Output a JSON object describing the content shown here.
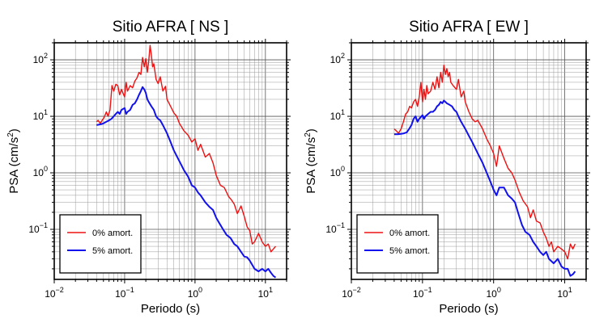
{
  "chart_data": [
    {
      "type": "line",
      "title": "Sitio AFRA [ NS ]",
      "xlabel": "Periodo (s)",
      "ylabel_main": "PSA (cm/s",
      "ylabel_sup": "2",
      "ylabel_close": ")",
      "xscale": "log",
      "yscale": "log",
      "xlim": [
        0.01,
        20
      ],
      "ylim": [
        0.013,
        200
      ],
      "grid": true,
      "legend_position": "bottom-left",
      "x_ticks": [
        {
          "value": 0.01,
          "base": "10",
          "exp": "−2"
        },
        {
          "value": 0.1,
          "base": "10",
          "exp": "−1"
        },
        {
          "value": 1,
          "base": "10",
          "exp": "0"
        },
        {
          "value": 10,
          "base": "10",
          "exp": "1"
        }
      ],
      "y_ticks": [
        {
          "value": 0.1,
          "base": "10",
          "exp": "−1"
        },
        {
          "value": 1,
          "base": "10",
          "exp": "0"
        },
        {
          "value": 10,
          "base": "10",
          "exp": "1"
        },
        {
          "value": 100,
          "base": "10",
          "exp": "2"
        }
      ],
      "series": [
        {
          "name": "0% amort.",
          "color": "#ee1111",
          "x": [
            0.04,
            0.042,
            0.045,
            0.048,
            0.051,
            0.055,
            0.058,
            0.062,
            0.066,
            0.07,
            0.075,
            0.08,
            0.085,
            0.09,
            0.1,
            0.105,
            0.11,
            0.12,
            0.13,
            0.14,
            0.15,
            0.16,
            0.17,
            0.18,
            0.19,
            0.2,
            0.21,
            0.22,
            0.23,
            0.24,
            0.25,
            0.26,
            0.28,
            0.3,
            0.32,
            0.35,
            0.38,
            0.4,
            0.45,
            0.5,
            0.55,
            0.6,
            0.7,
            0.8,
            0.9,
            1.0,
            1.1,
            1.2,
            1.4,
            1.6,
            1.8,
            2.0,
            2.3,
            2.6,
            3.0,
            3.3,
            3.6,
            4.0,
            4.5,
            5.0,
            5.5,
            6.0,
            6.5,
            7.0,
            8.0,
            9.0,
            10.0,
            11.0,
            12.0,
            13.0,
            14.0
          ],
          "y": [
            8,
            8.5,
            7.5,
            8.5,
            9.5,
            12,
            10,
            13,
            35,
            28,
            37,
            35,
            24,
            30,
            22,
            40,
            28,
            35,
            32,
            42,
            48,
            60,
            55,
            110,
            75,
            105,
            60,
            95,
            180,
            120,
            75,
            85,
            45,
            38,
            50,
            28,
            34,
            20,
            15,
            11.5,
            10,
            7.5,
            5.5,
            4.6,
            3.5,
            4.0,
            2.5,
            3.2,
            1.9,
            2.2,
            1.5,
            0.9,
            0.6,
            0.55,
            0.38,
            0.33,
            0.28,
            0.19,
            0.26,
            0.17,
            0.11,
            0.095,
            0.055,
            0.06,
            0.085,
            0.06,
            0.05,
            0.055,
            0.04,
            0.045,
            0.05
          ]
        },
        {
          "name": "5% amort.",
          "color": "#1111ee",
          "x": [
            0.04,
            0.045,
            0.05,
            0.055,
            0.06,
            0.065,
            0.07,
            0.075,
            0.08,
            0.085,
            0.09,
            0.1,
            0.105,
            0.11,
            0.12,
            0.13,
            0.14,
            0.15,
            0.16,
            0.17,
            0.18,
            0.19,
            0.2,
            0.21,
            0.22,
            0.24,
            0.26,
            0.28,
            0.3,
            0.32,
            0.35,
            0.4,
            0.45,
            0.5,
            0.6,
            0.7,
            0.8,
            0.9,
            1.0,
            1.1,
            1.2,
            1.4,
            1.6,
            1.8,
            2.0,
            2.2,
            2.5,
            2.8,
            3.2,
            3.6,
            4.0,
            4.5,
            5.0,
            5.5,
            6.0,
            7.0,
            8.0,
            9.0,
            10.0,
            11.0,
            12.0,
            13.0,
            14.0
          ],
          "y": [
            7,
            7.2,
            7.5,
            8,
            8.5,
            9,
            10,
            11,
            12,
            11,
            13,
            14,
            11,
            12,
            13,
            16,
            17,
            20,
            24,
            28,
            33,
            30,
            26,
            20,
            18,
            15,
            13,
            10,
            9,
            8.5,
            7,
            5,
            3.5,
            2.5,
            1.6,
            1.1,
            0.85,
            0.6,
            0.55,
            0.45,
            0.4,
            0.3,
            0.25,
            0.22,
            0.16,
            0.13,
            0.1,
            0.08,
            0.07,
            0.055,
            0.05,
            0.04,
            0.033,
            0.032,
            0.028,
            0.02,
            0.018,
            0.02,
            0.018,
            0.02,
            0.017,
            0.015,
            0.014
          ]
        }
      ]
    },
    {
      "type": "line",
      "title": "Sitio AFRA [ EW ]",
      "xlabel": "Periodo (s)",
      "ylabel_main": "PSA (cm/s",
      "ylabel_sup": "2",
      "ylabel_close": ")",
      "xscale": "log",
      "yscale": "log",
      "xlim": [
        0.01,
        20
      ],
      "ylim": [
        0.013,
        200
      ],
      "grid": true,
      "legend_position": "bottom-left",
      "x_ticks": [
        {
          "value": 0.01,
          "base": "10",
          "exp": "−2"
        },
        {
          "value": 0.1,
          "base": "10",
          "exp": "−1"
        },
        {
          "value": 1,
          "base": "10",
          "exp": "0"
        },
        {
          "value": 10,
          "base": "10",
          "exp": "1"
        }
      ],
      "y_ticks": [
        {
          "value": 0.1,
          "base": "10",
          "exp": "−1"
        },
        {
          "value": 1,
          "base": "10",
          "exp": "0"
        },
        {
          "value": 10,
          "base": "10",
          "exp": "1"
        },
        {
          "value": 100,
          "base": "10",
          "exp": "2"
        }
      ],
      "series": [
        {
          "name": "0% amort.",
          "color": "#ee1111",
          "x": [
            0.04,
            0.043,
            0.046,
            0.05,
            0.054,
            0.058,
            0.062,
            0.066,
            0.07,
            0.075,
            0.08,
            0.085,
            0.09,
            0.095,
            0.1,
            0.105,
            0.11,
            0.115,
            0.12,
            0.13,
            0.14,
            0.15,
            0.16,
            0.17,
            0.18,
            0.19,
            0.2,
            0.21,
            0.22,
            0.23,
            0.24,
            0.25,
            0.27,
            0.3,
            0.32,
            0.35,
            0.38,
            0.4,
            0.45,
            0.5,
            0.55,
            0.6,
            0.7,
            0.8,
            0.9,
            1.0,
            1.1,
            1.2,
            1.4,
            1.6,
            1.8,
            2.0,
            2.3,
            2.6,
            3.0,
            3.3,
            3.6,
            4.0,
            4.5,
            5.0,
            5.5,
            6.0,
            6.5,
            7.0,
            8.0,
            9.0,
            10.0,
            11.0,
            12.0,
            13.0,
            14.0
          ],
          "y": [
            6,
            5.5,
            5,
            6,
            8,
            11,
            12,
            15,
            14,
            18,
            20,
            15,
            22,
            40,
            18,
            30,
            20,
            35,
            25,
            28,
            40,
            30,
            50,
            32,
            60,
            40,
            80,
            55,
            70,
            50,
            60,
            40,
            35,
            30,
            45,
            22,
            28,
            18,
            12,
            9,
            8,
            8.5,
            6,
            4,
            3,
            2.2,
            1.3,
            3.0,
            1.8,
            1.2,
            1.0,
            0.75,
            0.45,
            0.32,
            0.25,
            0.16,
            0.22,
            0.14,
            0.13,
            0.09,
            0.07,
            0.05,
            0.06,
            0.04,
            0.05,
            0.045,
            0.04,
            0.03,
            0.055,
            0.045,
            0.055
          ]
        },
        {
          "name": "5% amort.",
          "color": "#1111ee",
          "x": [
            0.04,
            0.045,
            0.05,
            0.055,
            0.06,
            0.065,
            0.07,
            0.075,
            0.08,
            0.085,
            0.09,
            0.1,
            0.105,
            0.11,
            0.12,
            0.13,
            0.14,
            0.15,
            0.16,
            0.17,
            0.18,
            0.19,
            0.2,
            0.21,
            0.22,
            0.24,
            0.26,
            0.28,
            0.3,
            0.32,
            0.35,
            0.4,
            0.45,
            0.5,
            0.6,
            0.7,
            0.8,
            0.9,
            1.0,
            1.1,
            1.2,
            1.4,
            1.6,
            1.8,
            2.0,
            2.2,
            2.5,
            2.8,
            3.2,
            3.6,
            4.0,
            4.5,
            5.0,
            5.5,
            6.0,
            7.0,
            8.0,
            9.0,
            10.0,
            11.0,
            12.0,
            13.0,
            14.0
          ],
          "y": [
            4.8,
            4.8,
            4.9,
            5,
            5.2,
            6,
            7,
            9,
            10,
            8,
            9,
            10.5,
            9,
            10,
            11,
            12,
            12,
            13,
            15,
            16,
            18,
            17,
            19,
            18,
            17,
            16,
            15,
            13,
            12,
            10,
            8,
            6,
            4.5,
            3.5,
            2.2,
            1.5,
            1.0,
            0.7,
            0.5,
            0.4,
            0.55,
            0.55,
            0.4,
            0.35,
            0.3,
            0.2,
            0.12,
            0.09,
            0.08,
            0.06,
            0.05,
            0.04,
            0.035,
            0.04,
            0.03,
            0.025,
            0.03,
            0.022,
            0.02,
            0.02,
            0.015,
            0.016,
            0.018
          ]
        }
      ]
    }
  ]
}
